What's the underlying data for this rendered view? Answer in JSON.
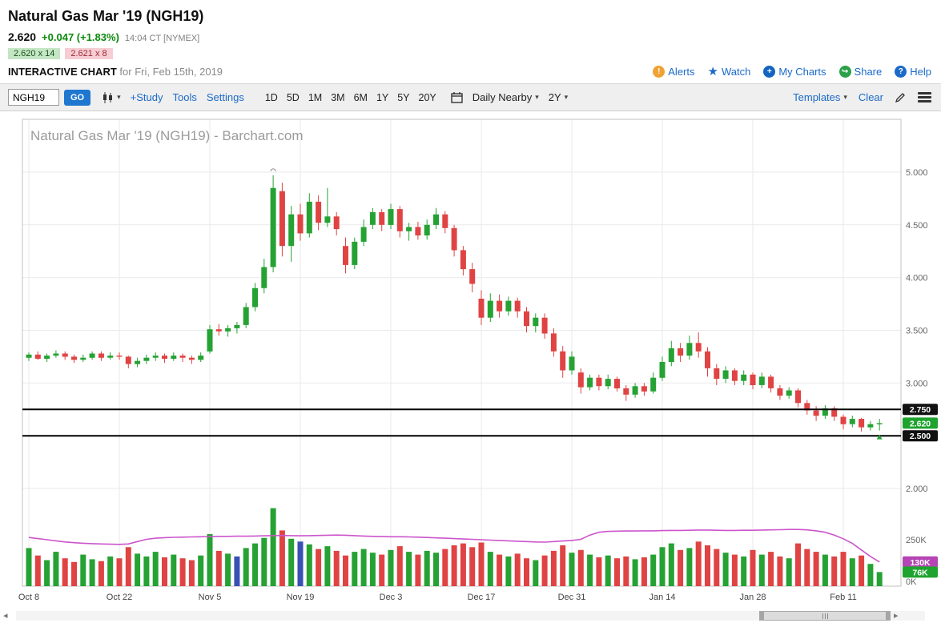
{
  "header": {
    "title": "Natural Gas Mar '19 (NGH19)",
    "last_price": "2.620",
    "change": "+0.047 (+1.83%)",
    "quote_time": "14:04 CT [NYMEX]",
    "bid": "2.620 x 14",
    "ask": "2.621 x 8",
    "chart_label": "INTERACTIVE CHART",
    "chart_date": "for Fri, Feb 15th, 2019",
    "links": {
      "alerts": "Alerts",
      "watch": "Watch",
      "my_charts": "My Charts",
      "share": "Share",
      "help": "Help"
    },
    "icons": {
      "alerts": "!",
      "watch": "★",
      "my_charts": "+",
      "share": "↪",
      "help": "?"
    }
  },
  "toolbar": {
    "symbol_value": "NGH19",
    "go_label": "GO",
    "study_label": "+Study",
    "tools_label": "Tools",
    "settings_label": "Settings",
    "periods": [
      "1D",
      "5D",
      "1M",
      "3M",
      "6M",
      "1Y",
      "5Y",
      "20Y"
    ],
    "frequency": "Daily Nearby",
    "range": "2Y",
    "templates_label": "Templates",
    "clear_label": "Clear",
    "caret": "▾"
  },
  "scrollbar": {
    "left_arrow": "◂",
    "right_arrow": "▸"
  },
  "chart_data": {
    "type": "candlestick",
    "title": "Natural Gas Mar '19 (NGH19) - Barchart.com",
    "x_tick_labels": [
      "Oct 8",
      "Oct 22",
      "Nov 5",
      "Nov 19",
      "Dec 3",
      "Dec 17",
      "Dec 31",
      "Jan 14",
      "Jan 28",
      "Feb 11"
    ],
    "y_ticks": [
      {
        "value": 5.0,
        "label": "5.000"
      },
      {
        "value": 4.5,
        "label": "4.500"
      },
      {
        "value": 4.0,
        "label": "4.000"
      },
      {
        "value": 3.5,
        "label": "3.500"
      },
      {
        "value": 3.0,
        "label": "3.000"
      },
      {
        "value": 2.5,
        "label": "2.500"
      },
      {
        "value": 2.0,
        "label": "2.000"
      }
    ],
    "ylim": [
      1.9,
      5.5
    ],
    "hlines": [
      {
        "value": 2.75,
        "label": "2.750"
      },
      {
        "value": 2.5,
        "label": "2.500"
      }
    ],
    "last_price": {
      "value": 2.62,
      "label": "2.620"
    },
    "markers": [
      {
        "type": "arc-top",
        "bar": 27
      },
      {
        "type": "arrow-up",
        "bar": 94
      }
    ],
    "candles": [
      [
        3.24,
        3.29,
        3.21,
        3.27
      ],
      [
        3.27,
        3.3,
        3.22,
        3.23
      ],
      [
        3.23,
        3.28,
        3.2,
        3.26
      ],
      [
        3.26,
        3.31,
        3.24,
        3.28
      ],
      [
        3.28,
        3.3,
        3.22,
        3.25
      ],
      [
        3.25,
        3.27,
        3.19,
        3.22
      ],
      [
        3.22,
        3.27,
        3.2,
        3.24
      ],
      [
        3.24,
        3.3,
        3.22,
        3.28
      ],
      [
        3.28,
        3.3,
        3.21,
        3.24
      ],
      [
        3.24,
        3.29,
        3.22,
        3.26
      ],
      [
        3.26,
        3.29,
        3.22,
        3.25
      ],
      [
        3.25,
        3.26,
        3.14,
        3.18
      ],
      [
        3.18,
        3.24,
        3.15,
        3.21
      ],
      [
        3.21,
        3.27,
        3.18,
        3.24
      ],
      [
        3.24,
        3.29,
        3.21,
        3.26
      ],
      [
        3.26,
        3.28,
        3.19,
        3.23
      ],
      [
        3.23,
        3.29,
        3.21,
        3.26
      ],
      [
        3.26,
        3.28,
        3.2,
        3.24
      ],
      [
        3.24,
        3.26,
        3.18,
        3.22
      ],
      [
        3.22,
        3.29,
        3.2,
        3.26
      ],
      [
        3.3,
        3.55,
        3.28,
        3.51
      ],
      [
        3.51,
        3.56,
        3.45,
        3.49
      ],
      [
        3.49,
        3.55,
        3.44,
        3.52
      ],
      [
        3.52,
        3.58,
        3.47,
        3.55
      ],
      [
        3.55,
        3.76,
        3.52,
        3.72
      ],
      [
        3.72,
        3.95,
        3.68,
        3.9
      ],
      [
        3.9,
        4.18,
        3.85,
        4.1
      ],
      [
        4.1,
        4.97,
        4.05,
        4.85
      ],
      [
        4.82,
        4.9,
        4.2,
        4.3
      ],
      [
        4.3,
        4.68,
        4.15,
        4.6
      ],
      [
        4.6,
        4.7,
        4.35,
        4.42
      ],
      [
        4.42,
        4.8,
        4.38,
        4.72
      ],
      [
        4.72,
        4.78,
        4.45,
        4.52
      ],
      [
        4.52,
        4.85,
        4.48,
        4.58
      ],
      [
        4.58,
        4.62,
        4.4,
        4.46
      ],
      [
        4.3,
        4.38,
        4.04,
        4.12
      ],
      [
        4.12,
        4.38,
        4.08,
        4.34
      ],
      [
        4.34,
        4.55,
        4.3,
        4.48
      ],
      [
        4.5,
        4.66,
        4.46,
        4.62
      ],
      [
        4.62,
        4.65,
        4.44,
        4.5
      ],
      [
        4.5,
        4.7,
        4.46,
        4.65
      ],
      [
        4.65,
        4.68,
        4.38,
        4.44
      ],
      [
        4.44,
        4.52,
        4.35,
        4.48
      ],
      [
        4.48,
        4.53,
        4.36,
        4.4
      ],
      [
        4.4,
        4.55,
        4.36,
        4.5
      ],
      [
        4.5,
        4.66,
        4.46,
        4.6
      ],
      [
        4.6,
        4.63,
        4.42,
        4.47
      ],
      [
        4.47,
        4.5,
        4.2,
        4.26
      ],
      [
        4.26,
        4.3,
        4.02,
        4.08
      ],
      [
        4.08,
        4.14,
        3.86,
        3.94
      ],
      [
        3.8,
        3.88,
        3.55,
        3.62
      ],
      [
        3.62,
        3.85,
        3.58,
        3.78
      ],
      [
        3.78,
        3.84,
        3.62,
        3.68
      ],
      [
        3.68,
        3.82,
        3.64,
        3.78
      ],
      [
        3.78,
        3.81,
        3.62,
        3.68
      ],
      [
        3.68,
        3.72,
        3.48,
        3.54
      ],
      [
        3.54,
        3.66,
        3.48,
        3.62
      ],
      [
        3.62,
        3.66,
        3.42,
        3.47
      ],
      [
        3.47,
        3.52,
        3.25,
        3.3
      ],
      [
        3.3,
        3.35,
        3.05,
        3.12
      ],
      [
        3.12,
        3.3,
        3.08,
        3.25
      ],
      [
        3.1,
        3.14,
        2.9,
        2.96
      ],
      [
        2.96,
        3.08,
        2.93,
        3.05
      ],
      [
        3.05,
        3.08,
        2.93,
        2.97
      ],
      [
        2.97,
        3.08,
        2.94,
        3.04
      ],
      [
        3.04,
        3.06,
        2.92,
        2.95
      ],
      [
        2.95,
        2.98,
        2.83,
        2.89
      ],
      [
        2.89,
        3.0,
        2.86,
        2.97
      ],
      [
        2.97,
        3.0,
        2.88,
        2.92
      ],
      [
        2.92,
        3.1,
        2.9,
        3.05
      ],
      [
        3.05,
        3.25,
        3.02,
        3.2
      ],
      [
        3.2,
        3.4,
        3.16,
        3.33
      ],
      [
        3.33,
        3.38,
        3.2,
        3.26
      ],
      [
        3.26,
        3.45,
        3.22,
        3.38
      ],
      [
        3.38,
        3.48,
        3.24,
        3.3
      ],
      [
        3.3,
        3.34,
        3.06,
        3.14
      ],
      [
        3.14,
        3.18,
        2.98,
        3.04
      ],
      [
        3.04,
        3.16,
        3.0,
        3.12
      ],
      [
        3.12,
        3.14,
        2.98,
        3.02
      ],
      [
        3.02,
        3.12,
        2.98,
        3.08
      ],
      [
        3.08,
        3.1,
        2.94,
        2.98
      ],
      [
        2.98,
        3.1,
        2.95,
        3.06
      ],
      [
        3.06,
        3.08,
        2.91,
        2.95
      ],
      [
        2.95,
        2.98,
        2.84,
        2.88
      ],
      [
        2.88,
        2.96,
        2.85,
        2.93
      ],
      [
        2.93,
        2.95,
        2.77,
        2.81
      ],
      [
        2.81,
        2.84,
        2.7,
        2.74
      ],
      [
        2.74,
        2.78,
        2.64,
        2.69
      ],
      [
        2.69,
        2.79,
        2.66,
        2.76
      ],
      [
        2.76,
        2.78,
        2.64,
        2.68
      ],
      [
        2.68,
        2.7,
        2.56,
        2.61
      ],
      [
        2.61,
        2.69,
        2.58,
        2.66
      ],
      [
        2.66,
        2.67,
        2.54,
        2.58
      ],
      [
        2.58,
        2.64,
        2.55,
        2.61
      ],
      [
        2.61,
        2.66,
        2.55,
        2.62
      ]
    ],
    "volume": {
      "values": [
        205,
        165,
        140,
        185,
        150,
        130,
        170,
        145,
        135,
        160,
        150,
        210,
        175,
        160,
        185,
        155,
        170,
        150,
        140,
        165,
        280,
        190,
        175,
        160,
        205,
        230,
        260,
        420,
        300,
        255,
        240,
        225,
        200,
        215,
        190,
        165,
        185,
        200,
        180,
        170,
        195,
        215,
        185,
        170,
        190,
        180,
        200,
        220,
        230,
        210,
        235,
        185,
        170,
        160,
        175,
        150,
        140,
        165,
        190,
        220,
        180,
        195,
        170,
        155,
        165,
        150,
        160,
        145,
        155,
        170,
        210,
        230,
        195,
        205,
        240,
        220,
        200,
        180,
        170,
        160,
        195,
        170,
        185,
        160,
        150,
        230,
        200,
        185,
        170,
        160,
        185,
        150,
        165,
        120,
        76
      ],
      "ma": [
        262,
        256,
        250,
        244,
        238,
        234,
        231,
        229,
        227,
        226,
        225,
        227,
        240,
        252,
        258,
        261,
        263,
        264,
        265,
        266,
        267,
        268,
        268,
        269,
        269,
        270,
        271,
        272,
        273,
        272,
        271,
        272,
        273,
        274,
        275,
        274,
        272,
        270,
        268,
        267,
        266,
        266,
        265,
        264,
        262,
        260,
        258,
        256,
        254,
        252,
        250,
        248,
        246,
        244,
        242,
        240,
        238,
        237,
        240,
        243,
        246,
        252,
        275,
        290,
        295,
        296,
        297,
        297,
        298,
        298,
        299,
        300,
        300,
        301,
        302,
        302,
        301,
        300,
        300,
        301,
        301,
        302,
        303,
        304,
        305,
        305,
        303,
        298,
        290,
        275,
        255,
        230,
        195,
        160,
        130
      ],
      "blue_indices": [
        23,
        30
      ],
      "ticks": [
        {
          "value": 250,
          "label": "250K"
        },
        {
          "value": 0,
          "label": "0K"
        }
      ],
      "ma_badge": {
        "value": 130,
        "label": "130K"
      },
      "last_badge": {
        "value": 76,
        "label": "76K"
      }
    },
    "colors": {
      "up": "#25a233",
      "down": "#e04343",
      "volume_blue": "#3a50b4",
      "ma_line": "#cc55cc",
      "hline": "#000000",
      "last_chip": "#1fa32f",
      "ma_chip": "#b544b5",
      "hline_chip": "#111111"
    }
  }
}
